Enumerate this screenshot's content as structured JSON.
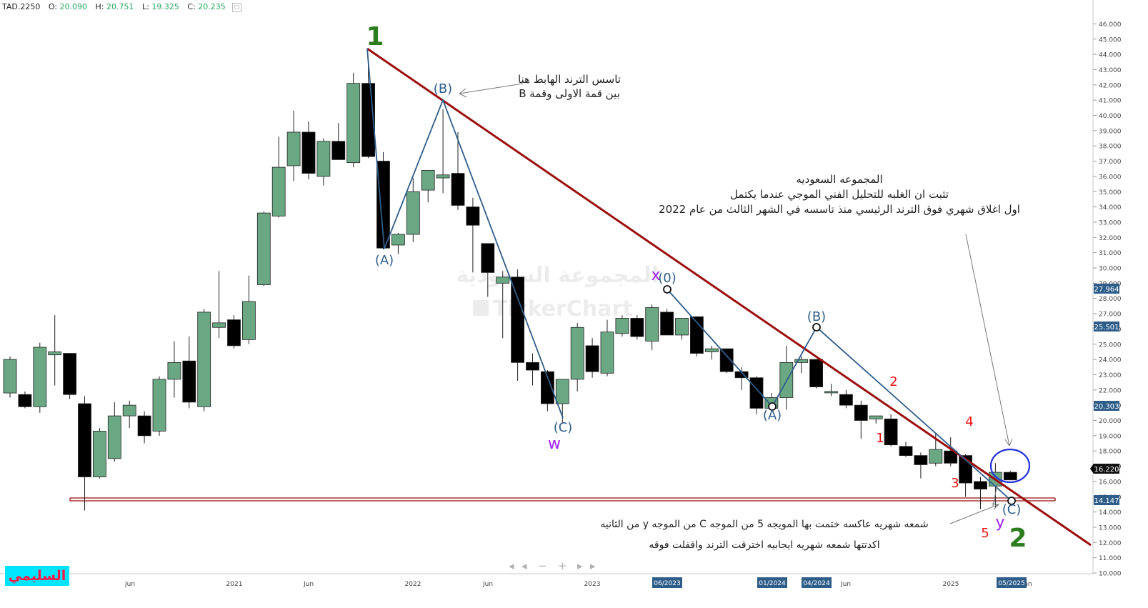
{
  "header": {
    "ticker": "TAD.2250",
    "open_label": "O:",
    "open": "20.090",
    "high_label": "H:",
    "high": "20.751",
    "low_label": "L:",
    "low": "19.325",
    "close_label": "C:",
    "close": "20.235"
  },
  "author_badge": "السليمي",
  "watermark": {
    "line1": "المجموعة السعودية",
    "line2": "TickerChart"
  },
  "colors": {
    "bull": "#6aa884",
    "bear": "#000000",
    "trendline": "#9b0d0d",
    "wave": "#2e5d8a",
    "support": "#9b0d0d",
    "circle": "#2233dd"
  },
  "annotations": {
    "top_note_l1": "تاسس الترند الهابط هنا",
    "top_note_l2": "بين قمة الاولى وقمة B",
    "right_note_l1": "المجموعه السعوديه",
    "right_note_l2": "تثبت ان الغلبه للتحليل الفني الموجي عندما يكتمل",
    "right_note_l3": "اول اغلاق شهري فوق الترند الرئيسي منذ تاسسه في الشهر الثالث من عام 2022",
    "bottom_note_l1": "شمعه شهريه عاكسه ختمت بها المويجه 5 من الموجه C من الموجه y من الثانيه",
    "bottom_note_l2": "اكدتتها شمعه شهريه ايجابيه اخترقت الترند واقفلت فوقه"
  },
  "wave_labels": {
    "w1": "1",
    "w2": "2",
    "A1": "(A)",
    "B1": "(B)",
    "C1": "(C)",
    "w": "w",
    "x": "x",
    "x0": "(0)",
    "A2": "(A)",
    "B2": "(B)",
    "C2": "(C)",
    "y": "y",
    "s1": "1",
    "s2": "2",
    "s3": "3",
    "s4": "4",
    "s5": "5"
  },
  "price_tags": [
    {
      "value": "27.964",
      "color": "#2e5d8a"
    },
    {
      "value": "25.501",
      "color": "#2e5d8a"
    },
    {
      "value": "20.303",
      "color": "#2e5d8a"
    },
    {
      "value": "16.220",
      "color": "#111111"
    },
    {
      "value": "14.147",
      "color": "#2e5d8a"
    }
  ],
  "x_axis": {
    "ticks": [
      "Jun",
      "2021",
      "Jun",
      "2022",
      "Jun",
      "2023",
      "Jun",
      "2025",
      "an"
    ],
    "date_tags": [
      "06/2023",
      "01/2024",
      "04/2024",
      "05/2025"
    ]
  },
  "nav_controls": [
    "◂",
    "◂",
    "−",
    "+",
    "▸",
    "▸"
  ],
  "chart_data": {
    "type": "candlestick",
    "title": "TAD.2250",
    "timeframe": "monthly",
    "ylim": [
      9.5,
      46.5
    ],
    "y_ticks": [
      "10.000",
      "11.000",
      "12.000",
      "13.000",
      "14.000",
      "15.000",
      "16.000",
      "17.000",
      "18.000",
      "19.000",
      "20.000",
      "21.000",
      "22.000",
      "23.000",
      "24.000",
      "25.000",
      "26.000",
      "27.000",
      "28.000",
      "29.000",
      "30.000",
      "31.000",
      "32.000",
      "33.000",
      "34.000",
      "35.000",
      "36.000",
      "37.000",
      "38.000",
      "39.000",
      "40.000",
      "41.000",
      "42.000",
      "43.000",
      "44.000",
      "45.000",
      "46.000"
    ],
    "candles": [
      {
        "o": 21.8,
        "h": 24.2,
        "l": 21.5,
        "c": 24.0
      },
      {
        "o": 21.7,
        "h": 21.9,
        "l": 20.8,
        "c": 20.9
      },
      {
        "o": 20.9,
        "h": 25.1,
        "l": 20.5,
        "c": 24.8
      },
      {
        "o": 24.3,
        "h": 26.9,
        "l": 22.3,
        "c": 24.5
      },
      {
        "o": 24.4,
        "h": 24.4,
        "l": 21.4,
        "c": 21.7
      },
      {
        "o": 21.1,
        "h": 21.6,
        "l": 14.1,
        "c": 16.3
      },
      {
        "o": 16.3,
        "h": 19.5,
        "l": 16.2,
        "c": 19.3
      },
      {
        "o": 17.5,
        "h": 21.2,
        "l": 17.3,
        "c": 20.3
      },
      {
        "o": 20.3,
        "h": 21.3,
        "l": 19.5,
        "c": 21.0
      },
      {
        "o": 20.3,
        "h": 20.6,
        "l": 18.5,
        "c": 19.0
      },
      {
        "o": 19.3,
        "h": 22.9,
        "l": 19.0,
        "c": 22.7
      },
      {
        "o": 22.7,
        "h": 25.2,
        "l": 21.5,
        "c": 23.8
      },
      {
        "o": 23.9,
        "h": 25.5,
        "l": 20.8,
        "c": 21.2
      },
      {
        "o": 20.9,
        "h": 27.3,
        "l": 20.6,
        "c": 27.1
      },
      {
        "o": 26.1,
        "h": 29.8,
        "l": 25.4,
        "c": 26.4
      },
      {
        "o": 26.6,
        "h": 26.9,
        "l": 24.7,
        "c": 24.9
      },
      {
        "o": 25.3,
        "h": 29.5,
        "l": 25.0,
        "c": 27.8
      },
      {
        "o": 28.9,
        "h": 33.7,
        "l": 28.8,
        "c": 33.6
      },
      {
        "o": 33.4,
        "h": 38.6,
        "l": 33.3,
        "c": 36.6
      },
      {
        "o": 36.7,
        "h": 40.3,
        "l": 35.7,
        "c": 38.9
      },
      {
        "o": 38.9,
        "h": 39.6,
        "l": 35.8,
        "c": 36.2
      },
      {
        "o": 36.0,
        "h": 38.5,
        "l": 35.4,
        "c": 38.3
      },
      {
        "o": 38.3,
        "h": 39.5,
        "l": 37.2,
        "c": 37.1
      },
      {
        "o": 36.9,
        "h": 42.8,
        "l": 36.6,
        "c": 42.1
      },
      {
        "o": 42.1,
        "h": 43.5,
        "l": 37.2,
        "c": 37.3
      },
      {
        "o": 37.0,
        "h": 37.6,
        "l": 31.2,
        "c": 31.3
      },
      {
        "o": 31.5,
        "h": 32.3,
        "l": 30.9,
        "c": 32.2
      },
      {
        "o": 32.2,
        "h": 35.9,
        "l": 31.7,
        "c": 35.0
      },
      {
        "o": 35.1,
        "h": 36.4,
        "l": 34.3,
        "c": 36.4
      },
      {
        "o": 35.9,
        "h": 40.4,
        "l": 34.9,
        "c": 36.1
      },
      {
        "o": 36.2,
        "h": 38.9,
        "l": 33.8,
        "c": 34.1
      },
      {
        "o": 34.0,
        "h": 34.6,
        "l": 29.7,
        "c": 32.8
      },
      {
        "o": 31.6,
        "h": 31.6,
        "l": 28.1,
        "c": 29.7
      },
      {
        "o": 29.0,
        "h": 29.8,
        "l": 25.4,
        "c": 29.4
      },
      {
        "o": 29.4,
        "h": 29.9,
        "l": 22.6,
        "c": 23.8
      },
      {
        "o": 23.8,
        "h": 24.4,
        "l": 22.3,
        "c": 23.3
      },
      {
        "o": 23.2,
        "h": 23.3,
        "l": 20.6,
        "c": 21.1
      },
      {
        "o": 21.1,
        "h": 22.7,
        "l": 19.8,
        "c": 22.7
      },
      {
        "o": 22.7,
        "h": 26.4,
        "l": 21.9,
        "c": 26.1
      },
      {
        "o": 24.9,
        "h": 25.4,
        "l": 22.8,
        "c": 23.2
      },
      {
        "o": 23.1,
        "h": 26.6,
        "l": 22.9,
        "c": 25.8
      },
      {
        "o": 25.7,
        "h": 26.9,
        "l": 25.5,
        "c": 26.7
      },
      {
        "o": 26.7,
        "h": 26.9,
        "l": 25.3,
        "c": 25.5
      },
      {
        "o": 25.2,
        "h": 27.6,
        "l": 24.6,
        "c": 27.4
      },
      {
        "o": 27.1,
        "h": 27.3,
        "l": 25.6,
        "c": 25.6
      },
      {
        "o": 25.6,
        "h": 26.7,
        "l": 25.3,
        "c": 26.7
      },
      {
        "o": 26.8,
        "h": 26.8,
        "l": 24.2,
        "c": 24.4
      },
      {
        "o": 24.5,
        "h": 24.9,
        "l": 24.0,
        "c": 24.7
      },
      {
        "o": 24.7,
        "h": 24.7,
        "l": 23.1,
        "c": 23.2
      },
      {
        "o": 23.2,
        "h": 23.5,
        "l": 22.0,
        "c": 22.8
      },
      {
        "o": 22.8,
        "h": 22.9,
        "l": 20.4,
        "c": 20.8
      },
      {
        "o": 20.8,
        "h": 21.8,
        "l": 20.5,
        "c": 21.5
      },
      {
        "o": 21.5,
        "h": 24.9,
        "l": 20.7,
        "c": 23.8
      },
      {
        "o": 23.8,
        "h": 24.2,
        "l": 23.1,
        "c": 24.0
      },
      {
        "o": 24.0,
        "h": 24.0,
        "l": 22.1,
        "c": 22.2
      },
      {
        "o": 21.9,
        "h": 22.4,
        "l": 21.6,
        "c": 21.9
      },
      {
        "o": 21.7,
        "h": 22.0,
        "l": 20.8,
        "c": 21.0
      },
      {
        "o": 21.0,
        "h": 21.3,
        "l": 18.8,
        "c": 20.0
      },
      {
        "o": 20.1,
        "h": 20.3,
        "l": 19.8,
        "c": 20.3
      },
      {
        "o": 20.1,
        "h": 20.4,
        "l": 18.3,
        "c": 18.4
      },
      {
        "o": 18.3,
        "h": 18.6,
        "l": 17.6,
        "c": 17.7
      },
      {
        "o": 17.7,
        "h": 17.9,
        "l": 16.2,
        "c": 17.1
      },
      {
        "o": 17.2,
        "h": 19.2,
        "l": 17.0,
        "c": 18.1
      },
      {
        "o": 18.0,
        "h": 18.9,
        "l": 17.0,
        "c": 17.2
      },
      {
        "o": 17.7,
        "h": 17.8,
        "l": 15.0,
        "c": 15.9
      },
      {
        "o": 16.0,
        "h": 16.3,
        "l": 14.2,
        "c": 15.5
      },
      {
        "o": 15.7,
        "h": 17.2,
        "l": 14.3,
        "c": 16.6
      },
      {
        "o": 16.6,
        "h": 16.7,
        "l": 16.1,
        "c": 16.1
      }
    ]
  }
}
